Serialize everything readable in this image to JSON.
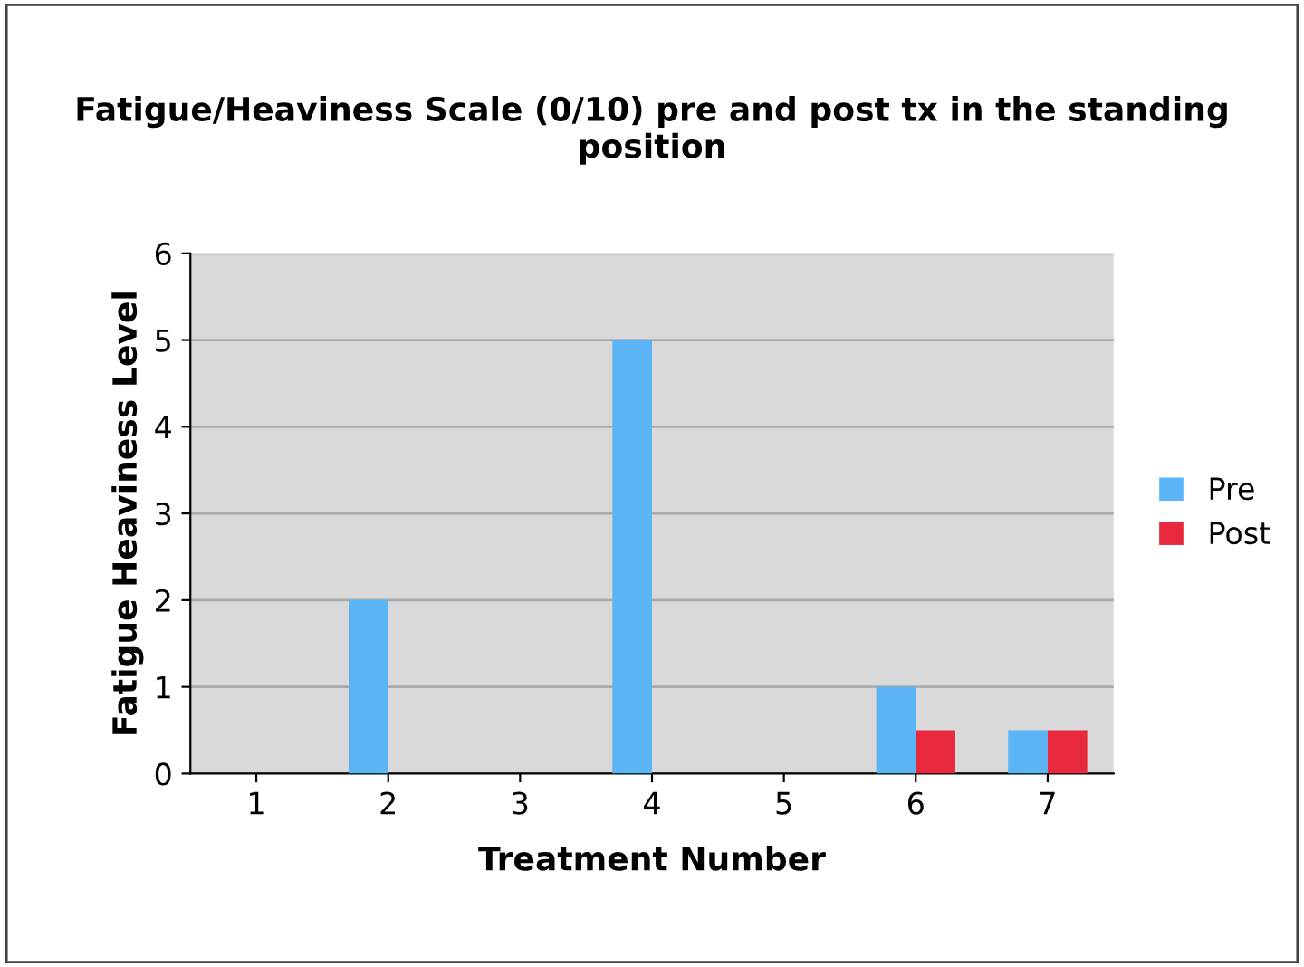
{
  "chart_data": {
    "type": "bar",
    "title": "Fatigue/Heaviness Scale (0/10) pre and post tx in the standing position",
    "xlabel": "Treatment Number",
    "ylabel": "Fatigue Heaviness Level",
    "categories": [
      "1",
      "2",
      "3",
      "4",
      "5",
      "6",
      "7"
    ],
    "series": [
      {
        "name": "Pre",
        "color": "#5ab4f5",
        "values": [
          0,
          2,
          0,
          5,
          0,
          1,
          0.5
        ]
      },
      {
        "name": "Post",
        "color": "#e8283c",
        "values": [
          0,
          0,
          0,
          0,
          0,
          0.5,
          0.5
        ]
      }
    ],
    "ylim": [
      0,
      6
    ],
    "yticks": [
      0,
      1,
      2,
      3,
      4,
      5,
      6
    ],
    "grid": "y",
    "legend": "right"
  }
}
